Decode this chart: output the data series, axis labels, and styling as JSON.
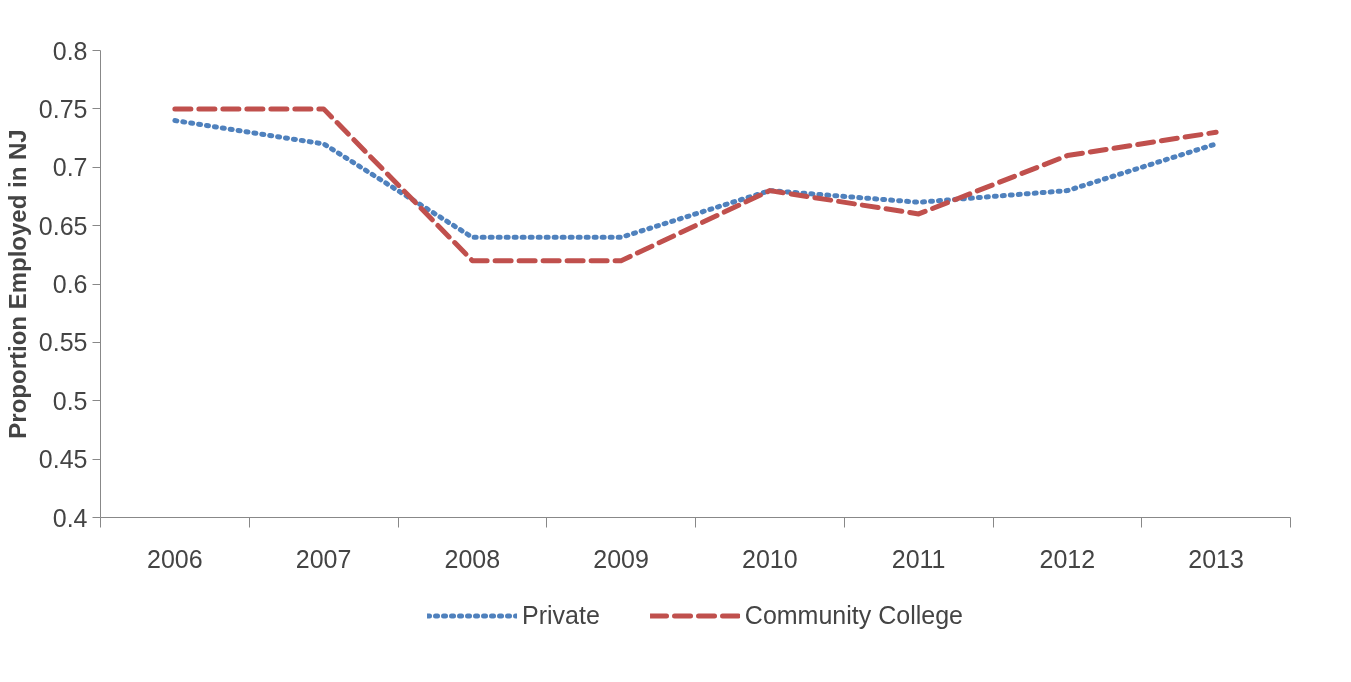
{
  "chart_data": {
    "type": "line",
    "ylabel": "Proportion Employed in NJ",
    "categories": [
      "2006",
      "2007",
      "2008",
      "2009",
      "2010",
      "2011",
      "2012",
      "2013"
    ],
    "series": [
      {
        "name": "Private",
        "color": "#4f81bd",
        "line_style": "dotted",
        "values": [
          0.74,
          0.72,
          0.64,
          0.64,
          0.68,
          0.67,
          0.68,
          0.72
        ]
      },
      {
        "name": "Community College",
        "color": "#c0504d",
        "line_style": "dashed",
        "values": [
          0.75,
          0.75,
          0.62,
          0.62,
          0.68,
          0.66,
          0.71,
          0.73
        ]
      }
    ],
    "ylim": [
      0.4,
      0.8
    ],
    "yticks": [
      0.4,
      0.45,
      0.5,
      0.55,
      0.6,
      0.65,
      0.7,
      0.75,
      0.8
    ],
    "grid": false,
    "legend": "bottom",
    "marker": "none"
  }
}
